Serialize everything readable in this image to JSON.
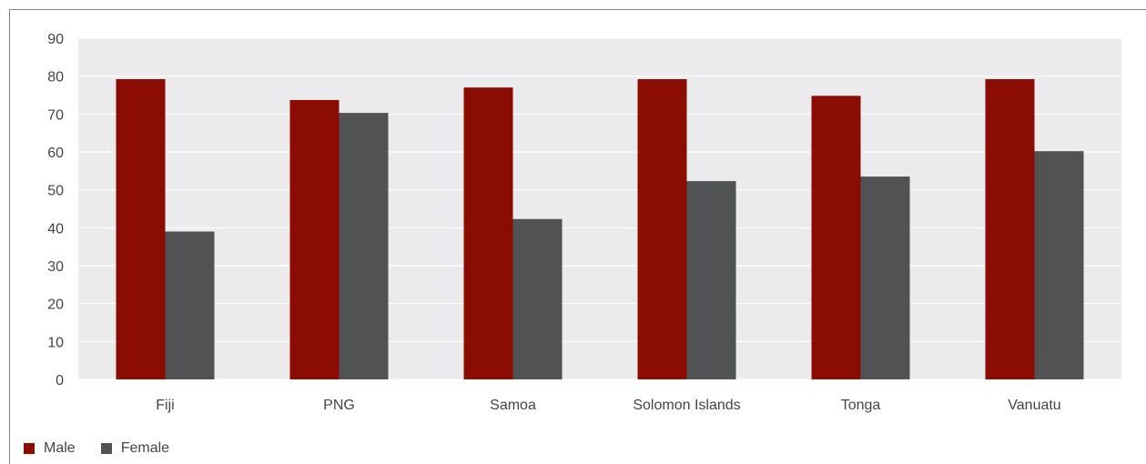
{
  "chart_data": {
    "type": "bar",
    "title": "",
    "xlabel": "",
    "ylabel": "",
    "ylim": [
      0,
      90
    ],
    "yticks": [
      0,
      10,
      20,
      30,
      40,
      50,
      60,
      70,
      80,
      90
    ],
    "grid": true,
    "legend_position": "bottom-left",
    "categories": [
      "Fiji",
      "PNG",
      "Samoa",
      "Solomon Islands",
      "Tonga",
      "Vanuatu"
    ],
    "series": [
      {
        "name": "Male",
        "color": "#8b0c02",
        "values": [
          79.2,
          73.7,
          77.0,
          79.2,
          74.8,
          79.2
        ]
      },
      {
        "name": "Female",
        "color": "#515254",
        "values": [
          39.0,
          70.3,
          42.3,
          52.3,
          53.5,
          60.2
        ]
      }
    ],
    "plot_background": "#ebebed",
    "grid_color": "#ffffff"
  }
}
